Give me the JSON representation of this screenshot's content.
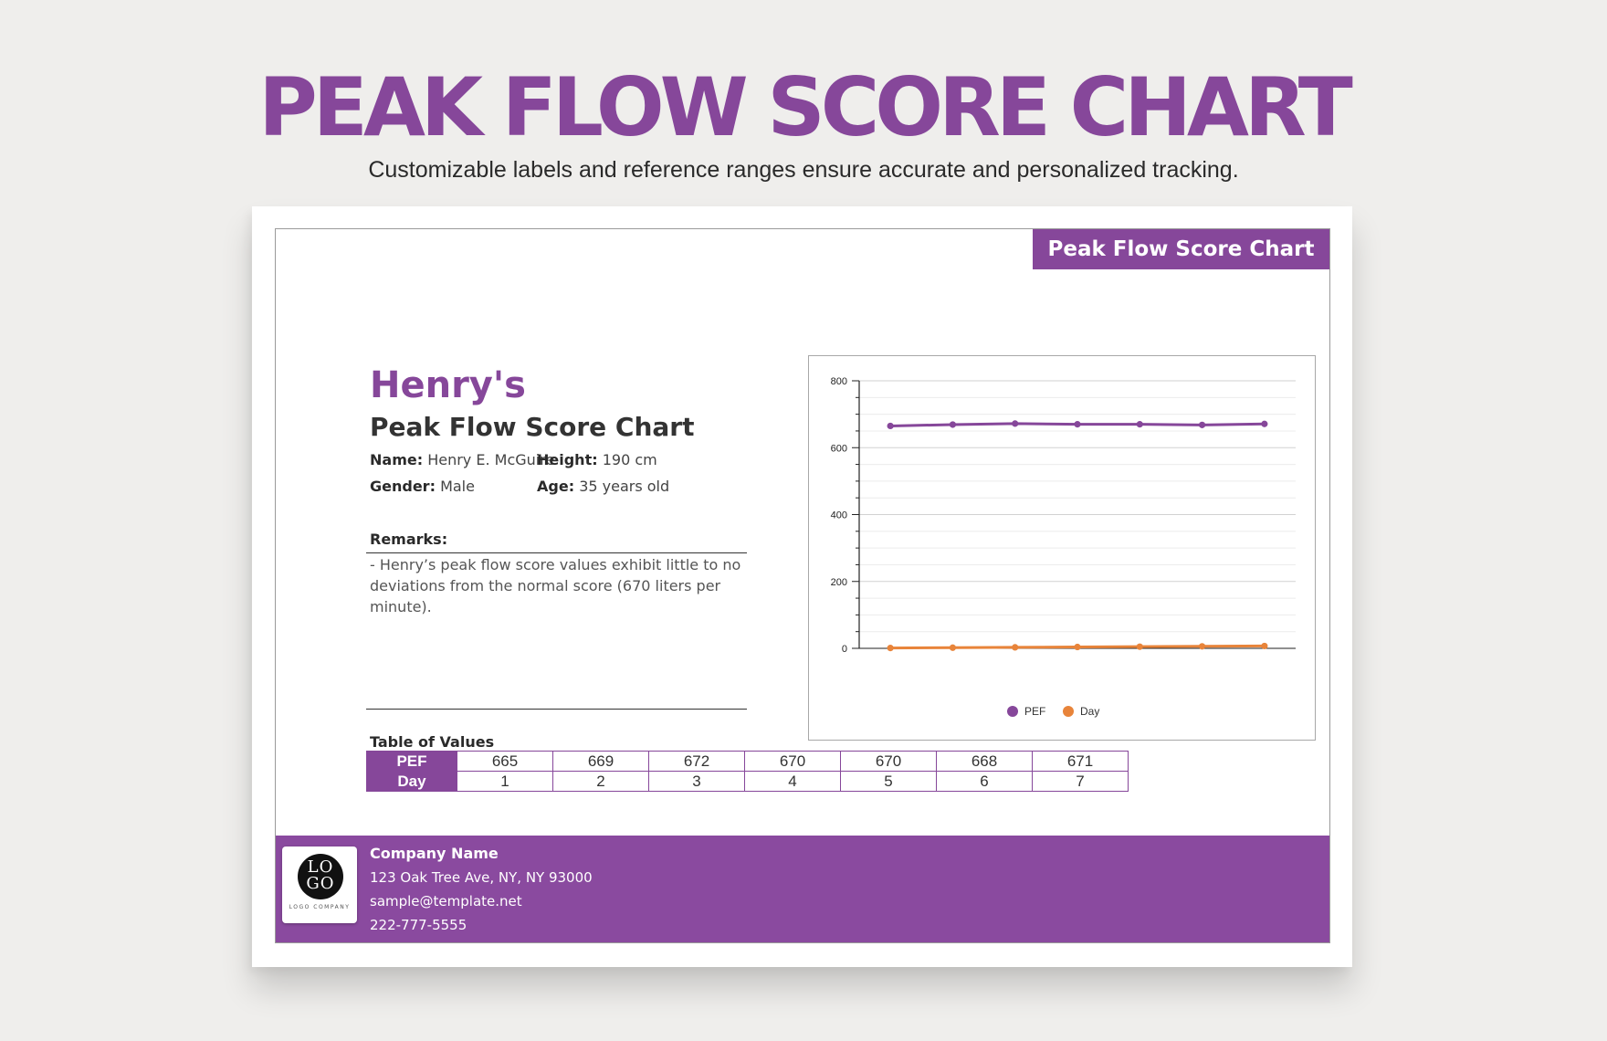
{
  "header": {
    "title": "PEAK FLOW SCORE CHART",
    "subtitle": "Customizable labels and reference ranges ensure accurate and personalized tracking."
  },
  "sheet": {
    "tab_label": "Peak Flow Score Chart",
    "person": "Henry's",
    "doc_title": "Peak Flow Score Chart",
    "info": {
      "name_label": "Name:",
      "name_value": "Henry E. McGuire",
      "height_label": "Height:",
      "height_value": "190 cm",
      "gender_label": "Gender:",
      "gender_value": "Male",
      "age_label": "Age:",
      "age_value": "35 years old"
    },
    "remarks_label": "Remarks:",
    "remarks_text": "- Henry’s peak flow score values exhibit little to no deviations from the normal score (670 liters per minute).",
    "table_label": "Table of Values"
  },
  "table": {
    "rows": [
      {
        "header": "PEF",
        "cells": [
          "665",
          "669",
          "672",
          "670",
          "670",
          "668",
          "671"
        ]
      },
      {
        "header": "Day",
        "cells": [
          "1",
          "2",
          "3",
          "4",
          "5",
          "6",
          "7"
        ]
      }
    ]
  },
  "footer": {
    "company": "Company Name",
    "address": "123 Oak Tree Ave, NY, NY 93000",
    "email": "sample@template.net",
    "phone": "222-777-5555",
    "logo_top": "LO",
    "logo_bottom": "GO",
    "logo_caption": "LOGO COMPANY"
  },
  "colors": {
    "brand": "#86479a",
    "pef_series": "#86479a",
    "day_series": "#e8843a"
  },
  "chart_data": {
    "type": "line",
    "x": [
      1,
      2,
      3,
      4,
      5,
      6,
      7
    ],
    "ylim": [
      0,
      800
    ],
    "yticks": [
      0,
      200,
      400,
      600,
      800
    ],
    "grid": true,
    "legend_position": "bottom",
    "series": [
      {
        "name": "PEF",
        "values": [
          665,
          669,
          672,
          670,
          670,
          668,
          671
        ]
      },
      {
        "name": "Day",
        "values": [
          1,
          2,
          3,
          4,
          5,
          6,
          7
        ]
      }
    ]
  }
}
